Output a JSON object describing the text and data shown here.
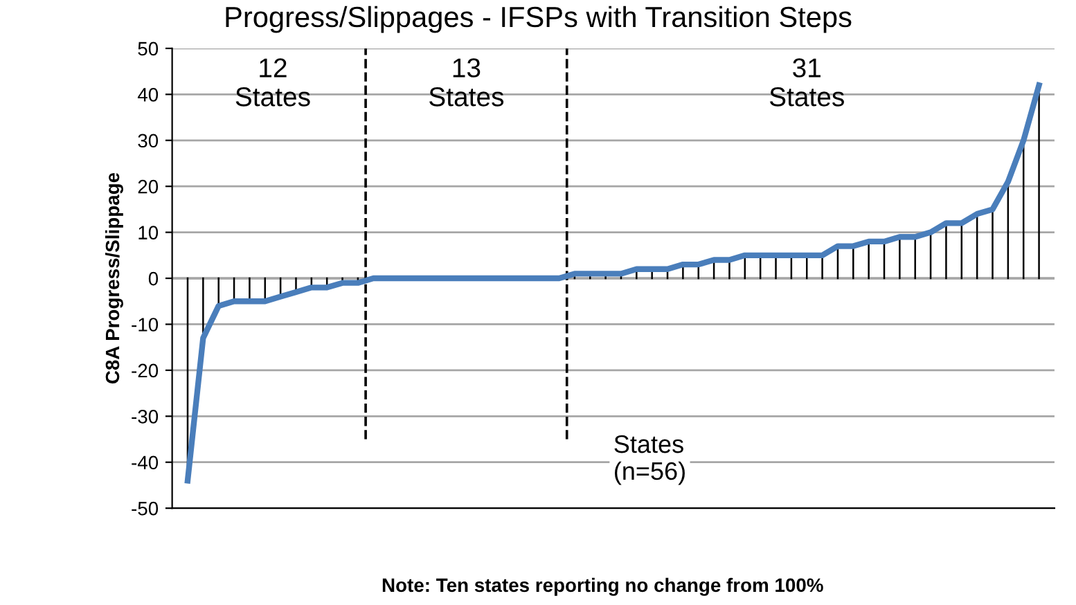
{
  "chart_data": {
    "type": "line",
    "title": "Progress/Slippages - IFSPs with Transition Steps",
    "xlabel": "States\n(n=56)",
    "ylabel": "C8A Progress/Slippage",
    "categories": [
      null,
      null,
      null,
      null,
      null,
      null,
      null,
      null,
      null,
      null,
      null,
      null,
      null,
      null,
      null,
      null,
      null,
      null,
      null,
      null,
      null,
      null,
      null,
      null,
      null,
      null,
      null,
      null,
      null,
      null,
      null,
      null,
      null,
      null,
      null,
      null,
      null,
      null,
      null,
      null,
      null,
      null,
      null,
      null,
      null,
      null,
      null,
      null,
      null,
      null,
      null,
      null,
      null,
      null,
      null,
      null
    ],
    "series": [
      {
        "color": "#4a7ebb",
        "values": [
          -44,
          -13,
          -6,
          -5,
          -5,
          -5,
          -4,
          -3,
          -2,
          -2,
          -1,
          -1,
          0,
          0,
          0,
          0,
          0,
          0,
          0,
          0,
          0,
          0,
          0,
          0,
          0,
          1,
          1,
          1,
          1,
          2,
          2,
          2,
          3,
          3,
          4,
          4,
          5,
          5,
          5,
          5,
          5,
          5,
          7,
          7,
          8,
          8,
          9,
          9,
          10,
          12,
          12,
          14,
          15,
          21,
          30,
          42
        ],
        "errors": [
          [
            -44,
            0
          ],
          [
            -13,
            0
          ],
          [
            -6,
            0
          ],
          [
            -5,
            0
          ],
          [
            -5,
            0
          ],
          [
            -5,
            0
          ],
          [
            -4,
            0
          ],
          [
            -3,
            0
          ],
          [
            -2,
            0
          ],
          [
            -2,
            0
          ],
          [
            -1,
            0
          ],
          [
            -1,
            0
          ],
          null,
          null,
          null,
          null,
          null,
          null,
          null,
          null,
          null,
          null,
          null,
          null,
          null,
          [
            0,
            1
          ],
          [
            0,
            1
          ],
          [
            0,
            1
          ],
          [
            0,
            1
          ],
          [
            0,
            2
          ],
          [
            0,
            2
          ],
          [
            0,
            2
          ],
          [
            0,
            3
          ],
          [
            0,
            3
          ],
          [
            0,
            4
          ],
          [
            0,
            4
          ],
          [
            0,
            5
          ],
          [
            0,
            5
          ],
          [
            0,
            5
          ],
          [
            0,
            5
          ],
          [
            0,
            5
          ],
          [
            0,
            5
          ],
          [
            0,
            7
          ],
          [
            0,
            7
          ],
          [
            0,
            8
          ],
          [
            0,
            8
          ],
          [
            0,
            9
          ],
          [
            0,
            9
          ],
          [
            0,
            10
          ],
          [
            0,
            12
          ],
          [
            0,
            12
          ],
          [
            0,
            14
          ],
          [
            0,
            15
          ],
          [
            0,
            21
          ],
          [
            0,
            30
          ],
          [
            0,
            42
          ]
        ]
      }
    ],
    "ylim": [
      -50,
      50
    ],
    "yticks": [
      -50,
      -40,
      -30,
      -20,
      -10,
      0,
      10,
      20,
      30,
      40,
      50
    ],
    "grid": "y",
    "annotations": [
      "12\nStates",
      "13\nStates",
      "31\nStates",
      "Note: Ten states reporting no change from 100%"
    ]
  }
}
